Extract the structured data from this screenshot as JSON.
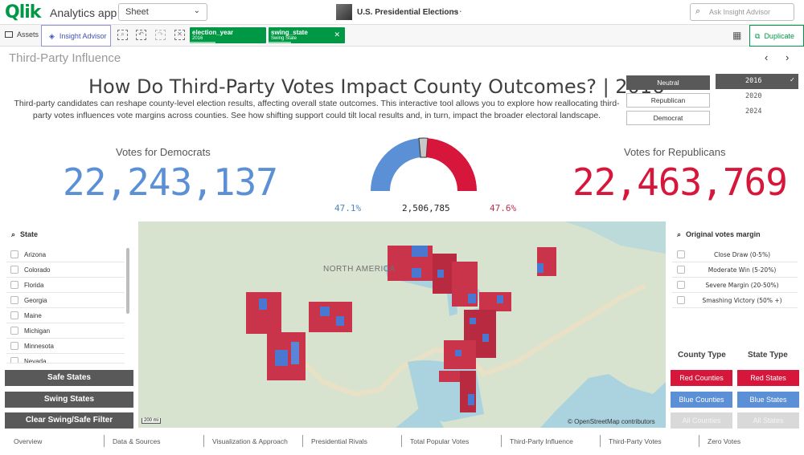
{
  "topbar": {
    "logo_text": "Qlik",
    "app_name": "Analytics app",
    "sheet_selector": "Sheet",
    "app_title": "U.S. Presidential Elections",
    "more": "···",
    "search_placeholder": "Ask Insight Advisor"
  },
  "toolbar": {
    "assets_label": "Assets",
    "insight_label": "Insight Advisor",
    "filters": [
      {
        "field": "election_year",
        "value": "2016"
      },
      {
        "field": "swing_state",
        "value": "Swing State"
      }
    ],
    "duplicate_label": "Duplicate"
  },
  "sheet": {
    "title": "Third-Party Influence",
    "headline": "How Do Third-Party Votes Impact County Outcomes? | 2016",
    "description": "Third-party candidates can reshape county-level election results, affecting overall state outcomes. This interactive tool allows you to explore how reallocating third-party votes influences vote margins across counties. See how shifting support could tilt local results and, in turn, impact the broader electoral landscape."
  },
  "party_buttons": [
    "Neutral",
    "Republican",
    "Democrat"
  ],
  "years": [
    {
      "label": "2016",
      "selected": true
    },
    {
      "label": "2020",
      "selected": false
    },
    {
      "label": "2024",
      "selected": false
    }
  ],
  "kpi": {
    "dem_label": "Votes for Democrats",
    "dem_value": "22,243,137",
    "rep_label": "Votes for Republicans",
    "rep_value": "22,463,769",
    "dem_pct": "47.1%",
    "third_party": "2,506,785",
    "rep_pct": "47.6%",
    "dem_color": "#5b8fd6",
    "rep_color": "#d6163a"
  },
  "gauge": {
    "dem_fraction": 0.471,
    "third_fraction": 0.053,
    "rep_fraction": 0.476
  },
  "state_list": {
    "header": "State",
    "items": [
      "Arizona",
      "Colorado",
      "Florida",
      "Georgia",
      "Maine",
      "Michigan",
      "Minnesota",
      "Nevada"
    ]
  },
  "left_buttons": [
    "Safe States",
    "Swing States",
    "Clear Swing/Safe Filter"
  ],
  "map": {
    "label": "NORTH AMERICA",
    "scale": "200 mi",
    "attribution": "© OpenStreetMap contributors"
  },
  "margin_list": {
    "header": "Original votes margin",
    "items": [
      "Close Draw (0-5%)",
      "Moderate Win (5-20%)",
      "Severe Margin (20-50%)",
      "Smashing Victory (50% +)"
    ]
  },
  "county_type": {
    "header": "County Type",
    "buttons": [
      "Red Counties",
      "Blue Counties",
      "All Counties"
    ]
  },
  "state_type": {
    "header": "State Type",
    "buttons": [
      "Red States",
      "Blue States",
      "All States"
    ]
  },
  "bottom_nav": [
    "Overview",
    "Data & Sources",
    "Visualization & Approach",
    "Presidential Rivals",
    "Total Popular Votes",
    "Third-Party Influence",
    "Third-Party Votes",
    "Zero Votes"
  ]
}
